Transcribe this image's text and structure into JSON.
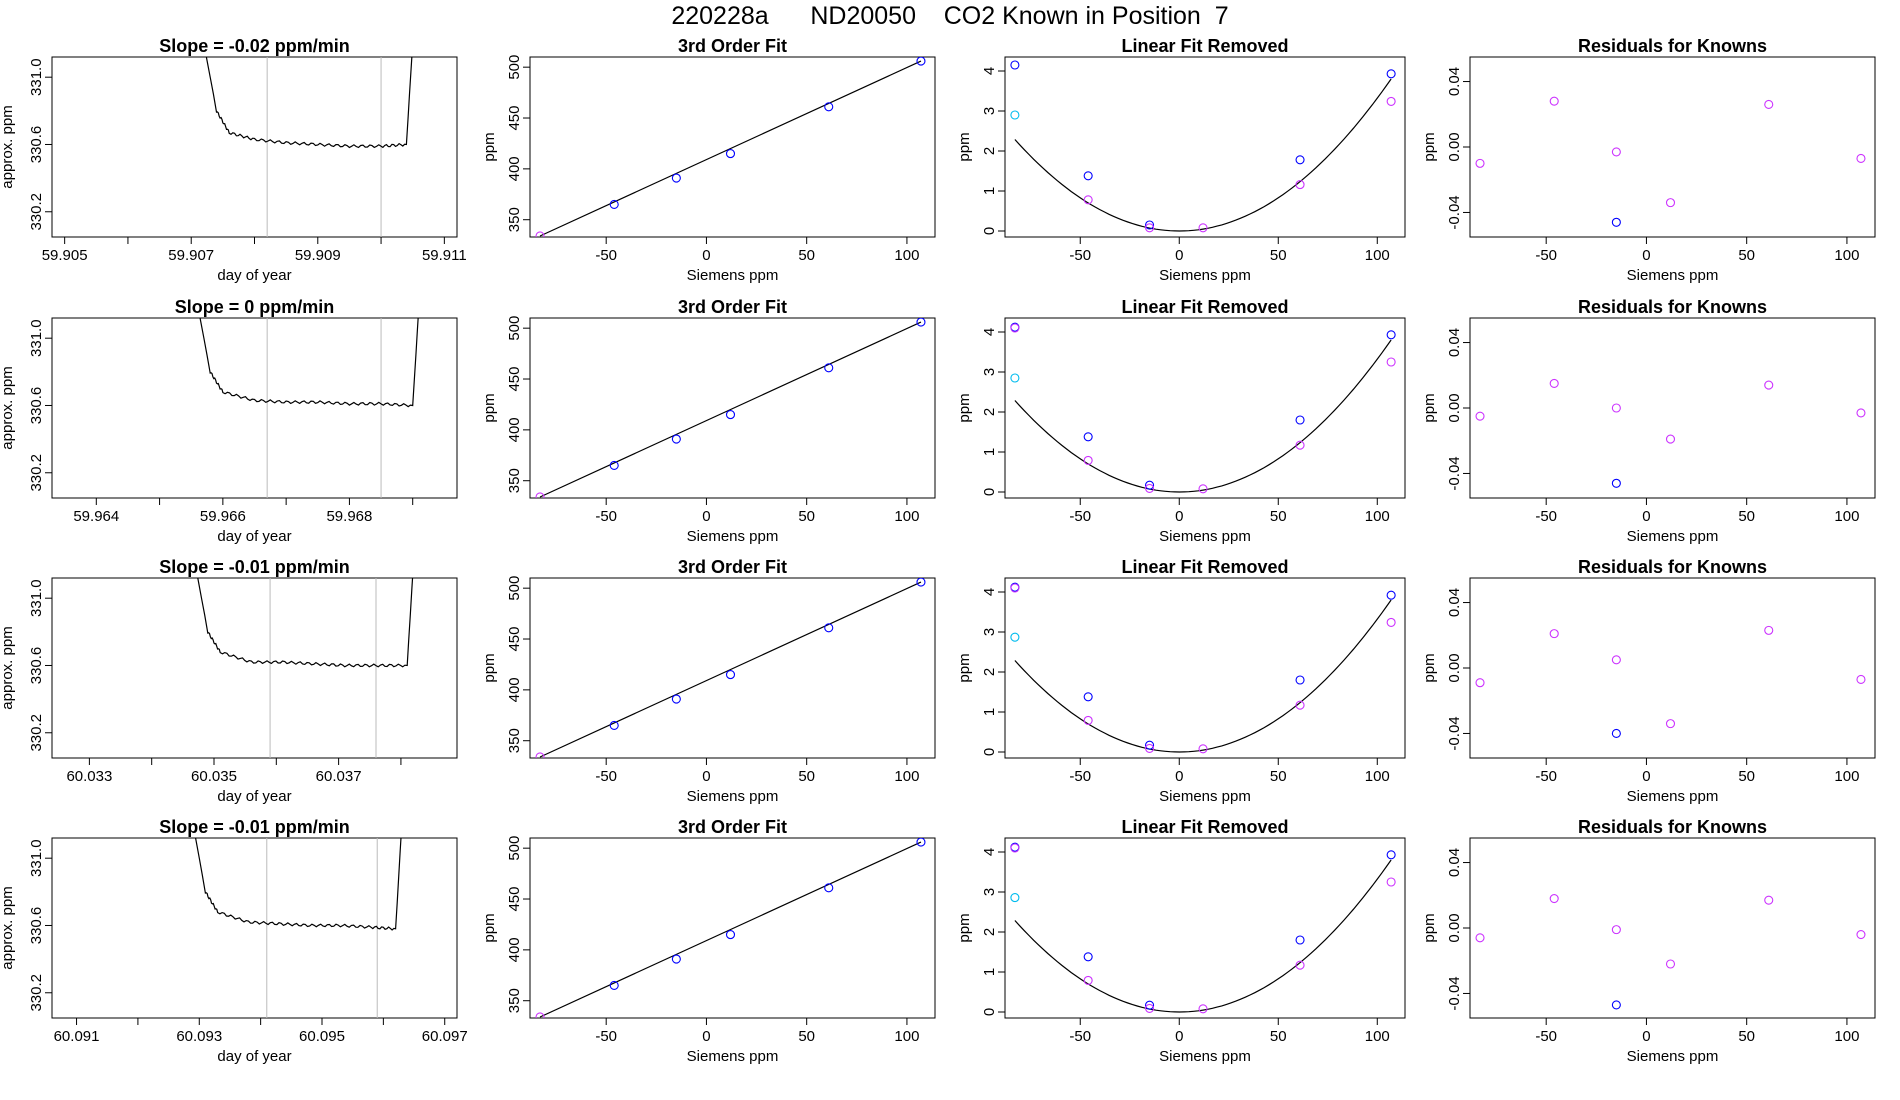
{
  "page": {
    "title": "220228a      ND20050    CO2 Known in Position  7"
  },
  "colors": {
    "line": "#000000",
    "marker_residual": "#cc33ff",
    "marker_blue": "#0000ff",
    "marker_cyan": "#00bbee",
    "window_line": "#bbbbbb"
  },
  "chart_data": [
    {
      "type": "line",
      "row": 0,
      "col": 0,
      "title": "Slope =  -0.02  ppm/min",
      "xlabel": "day of year",
      "ylabel": "approx. ppm",
      "xlim": [
        59.9048,
        59.9112
      ],
      "ylim": [
        330.05,
        331.12
      ],
      "xticks": [
        "59.905",
        "59.906",
        "59.907",
        "59.908",
        "59.909",
        "59.910",
        "59.911"
      ],
      "xtick_labels": [
        "59.905",
        "",
        "59.907",
        "",
        "59.909",
        "",
        "59.911"
      ],
      "yticks": [
        "330.2",
        "330.6",
        "331.0"
      ],
      "window": [
        59.9082,
        59.91
      ],
      "series": [
        {
          "x": [
            59.9072,
            59.9074,
            59.9076,
            59.908,
            59.9085,
            59.909,
            59.9095,
            59.91,
            59.9104,
            59.9105
          ],
          "y": [
            331.2,
            330.8,
            330.67,
            330.63,
            330.61,
            330.6,
            330.59,
            330.59,
            330.6,
            331.2
          ]
        }
      ]
    },
    {
      "type": "scatter",
      "row": 0,
      "col": 1,
      "title": "3rd Order Fit",
      "xlabel": "Siemens ppm",
      "ylabel": "ppm",
      "xlim": [
        -88,
        114
      ],
      "ylim": [
        333,
        510
      ],
      "xticks": [
        "-50",
        "0",
        "50",
        "100"
      ],
      "yticks": [
        "350",
        "400",
        "450",
        "500"
      ],
      "line": {
        "x": [
          -83,
          107
        ],
        "y": [
          334,
          506
        ]
      },
      "series": [
        {
          "x": [
            -83
          ],
          "y": [
            334
          ],
          "color": "purple"
        },
        {
          "x": [
            -46,
            -15,
            12,
            61,
            107
          ],
          "y": [
            365,
            391,
            415,
            461,
            506
          ],
          "color": "blue"
        }
      ]
    },
    {
      "type": "scatter",
      "row": 0,
      "col": 2,
      "title": "Linear Fit Removed",
      "xlabel": "Siemens ppm",
      "ylabel": "ppm",
      "xlim": [
        -88,
        114
      ],
      "ylim": [
        -0.15,
        4.35
      ],
      "xticks": [
        "-50",
        "0",
        "50",
        "100"
      ],
      "yticks": [
        "0",
        "1",
        "2",
        "3",
        "4"
      ],
      "curve": {
        "coef": 0.000332,
        "x_range": [
          -83,
          107
        ]
      },
      "series": [
        {
          "x": [
            -83,
            -46,
            -15,
            61,
            107
          ],
          "y": [
            4.15,
            1.38,
            0.15,
            1.78,
            3.93
          ],
          "color": "blue"
        },
        {
          "x": [
            -46,
            -15,
            12,
            61,
            107
          ],
          "y": [
            0.78,
            0.08,
            0.08,
            1.16,
            3.24
          ],
          "color": "purple"
        },
        {
          "x": [
            -83
          ],
          "y": [
            2.9
          ],
          "color": "cyan"
        }
      ]
    },
    {
      "type": "scatter",
      "row": 0,
      "col": 3,
      "title": "Residuals for Knowns",
      "xlabel": "Siemens ppm",
      "ylabel": "ppm",
      "xlim": [
        -88,
        114
      ],
      "ylim": [
        -0.055,
        0.055
      ],
      "xticks": [
        "-50",
        "0",
        "50",
        "100"
      ],
      "yticks": [
        "-0.04",
        "0.00",
        "0.04"
      ],
      "series": [
        {
          "x": [
            -83,
            -46,
            -15,
            12,
            61,
            107
          ],
          "y": [
            -0.01,
            0.028,
            -0.003,
            -0.034,
            0.026,
            -0.007
          ],
          "color": "purple"
        },
        {
          "x": [
            -15
          ],
          "y": [
            -0.046
          ],
          "color": "blue"
        }
      ]
    },
    {
      "type": "line",
      "row": 1,
      "col": 0,
      "title": "Slope =  0  ppm/min",
      "xlabel": "day of year",
      "ylabel": "approx. ppm",
      "xlim": [
        59.9633,
        59.9697
      ],
      "ylim": [
        330.05,
        331.12
      ],
      "xticks": [
        "59.964",
        "59.965",
        "59.966",
        "59.967",
        "59.968",
        "59.969"
      ],
      "xtick_labels": [
        "59.964",
        "",
        "59.966",
        "",
        "59.968",
        ""
      ],
      "yticks": [
        "330.2",
        "330.6",
        "331.0"
      ],
      "window": [
        59.9667,
        59.9685
      ],
      "series": [
        {
          "x": [
            59.9656,
            59.9658,
            59.966,
            59.9665,
            59.967,
            59.9675,
            59.968,
            59.9685,
            59.969,
            59.9691
          ],
          "y": [
            331.2,
            330.8,
            330.68,
            330.63,
            330.62,
            330.62,
            330.61,
            330.61,
            330.6,
            331.2
          ]
        }
      ]
    },
    {
      "type": "scatter",
      "row": 1,
      "col": 1,
      "title": "3rd Order Fit",
      "xlabel": "Siemens ppm",
      "ylabel": "ppm",
      "xlim": [
        -88,
        114
      ],
      "ylim": [
        333,
        510
      ],
      "xticks": [
        "-50",
        "0",
        "50",
        "100"
      ],
      "yticks": [
        "350",
        "400",
        "450",
        "500"
      ],
      "line": {
        "x": [
          -83,
          107
        ],
        "y": [
          334,
          506
        ]
      },
      "series": [
        {
          "x": [
            -83
          ],
          "y": [
            334
          ],
          "color": "purple"
        },
        {
          "x": [
            -46,
            -15,
            12,
            61,
            107
          ],
          "y": [
            365,
            391,
            415,
            461,
            506
          ],
          "color": "blue"
        }
      ]
    },
    {
      "type": "scatter",
      "row": 1,
      "col": 2,
      "title": "Linear Fit Removed",
      "xlabel": "Siemens ppm",
      "ylabel": "ppm",
      "xlim": [
        -88,
        114
      ],
      "ylim": [
        -0.15,
        4.35
      ],
      "xticks": [
        "-50",
        "0",
        "50",
        "100"
      ],
      "yticks": [
        "0",
        "1",
        "2",
        "3",
        "4"
      ],
      "curve": {
        "coef": 0.000332,
        "x_range": [
          -83,
          107
        ]
      },
      "series": [
        {
          "x": [
            -83,
            -46,
            -15,
            61,
            107
          ],
          "y": [
            4.12,
            1.38,
            0.17,
            1.8,
            3.93
          ],
          "color": "blue"
        },
        {
          "x": [
            -83,
            -46,
            -15,
            12,
            61,
            107
          ],
          "y": [
            4.1,
            0.79,
            0.09,
            0.08,
            1.17,
            3.25
          ],
          "color": "purple"
        },
        {
          "x": [
            -83
          ],
          "y": [
            2.85
          ],
          "color": "cyan"
        }
      ]
    },
    {
      "type": "scatter",
      "row": 1,
      "col": 3,
      "title": "Residuals for Knowns",
      "xlabel": "Siemens ppm",
      "ylabel": "ppm",
      "xlim": [
        -88,
        114
      ],
      "ylim": [
        -0.055,
        0.055
      ],
      "xticks": [
        "-50",
        "0",
        "50",
        "100"
      ],
      "yticks": [
        "-0.04",
        "0.00",
        "0.04"
      ],
      "series": [
        {
          "x": [
            -83,
            -46,
            -15,
            12,
            61,
            107
          ],
          "y": [
            -0.005,
            0.015,
            0.0,
            -0.019,
            0.014,
            -0.003
          ],
          "color": "purple"
        },
        {
          "x": [
            -15
          ],
          "y": [
            -0.046
          ],
          "color": "blue"
        }
      ]
    },
    {
      "type": "line",
      "row": 2,
      "col": 0,
      "title": "Slope =  -0.01  ppm/min",
      "xlabel": "day of year",
      "ylabel": "approx. ppm",
      "xlim": [
        60.0324,
        60.0389
      ],
      "ylim": [
        330.05,
        331.12
      ],
      "xticks": [
        "60.033",
        "60.034",
        "60.035",
        "60.036",
        "60.037",
        "60.038"
      ],
      "xtick_labels": [
        "60.033",
        "",
        "60.035",
        "",
        "60.037",
        ""
      ],
      "yticks": [
        "330.2",
        "330.6",
        "331.0"
      ],
      "window": [
        60.0359,
        60.0376
      ],
      "series": [
        {
          "x": [
            60.0347,
            60.0349,
            60.0351,
            60.0356,
            60.0361,
            60.0366,
            60.0371,
            60.0376,
            60.0381,
            60.0382
          ],
          "y": [
            331.2,
            330.8,
            330.68,
            330.62,
            330.62,
            330.61,
            330.6,
            330.6,
            330.6,
            331.2
          ]
        }
      ]
    },
    {
      "type": "scatter",
      "row": 2,
      "col": 1,
      "title": "3rd Order Fit",
      "xlabel": "Siemens ppm",
      "ylabel": "ppm",
      "xlim": [
        -88,
        114
      ],
      "ylim": [
        333,
        510
      ],
      "xticks": [
        "-50",
        "0",
        "50",
        "100"
      ],
      "yticks": [
        "350",
        "400",
        "450",
        "500"
      ],
      "line": {
        "x": [
          -83,
          107
        ],
        "y": [
          334,
          506
        ]
      },
      "series": [
        {
          "x": [
            -83
          ],
          "y": [
            334
          ],
          "color": "purple"
        },
        {
          "x": [
            -46,
            -15,
            12,
            61,
            107
          ],
          "y": [
            365,
            391,
            415,
            461,
            506
          ],
          "color": "blue"
        }
      ]
    },
    {
      "type": "scatter",
      "row": 2,
      "col": 2,
      "title": "Linear Fit Removed",
      "xlabel": "Siemens ppm",
      "ylabel": "ppm",
      "xlim": [
        -88,
        114
      ],
      "ylim": [
        -0.15,
        4.35
      ],
      "xticks": [
        "-50",
        "0",
        "50",
        "100"
      ],
      "yticks": [
        "0",
        "1",
        "2",
        "3",
        "4"
      ],
      "curve": {
        "coef": 0.000332,
        "x_range": [
          -83,
          107
        ]
      },
      "series": [
        {
          "x": [
            -83,
            -46,
            -15,
            61,
            107
          ],
          "y": [
            4.12,
            1.38,
            0.17,
            1.8,
            3.92
          ],
          "color": "blue"
        },
        {
          "x": [
            -83,
            -46,
            -15,
            12,
            61,
            107
          ],
          "y": [
            4.1,
            0.79,
            0.09,
            0.08,
            1.17,
            3.24
          ],
          "color": "purple"
        },
        {
          "x": [
            -83
          ],
          "y": [
            2.87
          ],
          "color": "cyan"
        }
      ]
    },
    {
      "type": "scatter",
      "row": 2,
      "col": 3,
      "title": "Residuals for Knowns",
      "xlabel": "Siemens ppm",
      "ylabel": "ppm",
      "xlim": [
        -88,
        114
      ],
      "ylim": [
        -0.055,
        0.055
      ],
      "xticks": [
        "-50",
        "0",
        "50",
        "100"
      ],
      "yticks": [
        "-0.04",
        "0.00",
        "0.04"
      ],
      "series": [
        {
          "x": [
            -83,
            -46,
            -15,
            12,
            61,
            107
          ],
          "y": [
            -0.009,
            0.021,
            0.005,
            -0.034,
            0.023,
            -0.007
          ],
          "color": "purple"
        },
        {
          "x": [
            -15
          ],
          "y": [
            -0.04
          ],
          "color": "blue"
        }
      ]
    },
    {
      "type": "line",
      "row": 3,
      "col": 0,
      "title": "Slope =  -0.01  ppm/min",
      "xlabel": "day of year",
      "ylabel": "approx. ppm",
      "xlim": [
        60.0906,
        60.0972
      ],
      "ylim": [
        330.05,
        331.12
      ],
      "xticks": [
        "60.091",
        "60.092",
        "60.093",
        "60.094",
        "60.095",
        "60.096",
        "60.097"
      ],
      "xtick_labels": [
        "60.091",
        "",
        "60.093",
        "",
        "60.095",
        "",
        "60.097"
      ],
      "yticks": [
        "330.2",
        "330.6",
        "331.0"
      ],
      "window": [
        60.0941,
        60.0959
      ],
      "series": [
        {
          "x": [
            60.0929,
            60.0931,
            60.0933,
            60.0938,
            60.0943,
            60.0948,
            60.0953,
            60.0958,
            60.0962,
            60.0963
          ],
          "y": [
            331.2,
            330.8,
            330.68,
            330.62,
            330.61,
            330.6,
            330.6,
            330.59,
            330.58,
            331.2
          ]
        }
      ]
    },
    {
      "type": "scatter",
      "row": 3,
      "col": 1,
      "title": "3rd Order Fit",
      "xlabel": "Siemens ppm",
      "ylabel": "ppm",
      "xlim": [
        -88,
        114
      ],
      "ylim": [
        333,
        510
      ],
      "xticks": [
        "-50",
        "0",
        "50",
        "100"
      ],
      "yticks": [
        "350",
        "400",
        "450",
        "500"
      ],
      "line": {
        "x": [
          -83,
          107
        ],
        "y": [
          334,
          506
        ]
      },
      "series": [
        {
          "x": [
            -83
          ],
          "y": [
            334
          ],
          "color": "purple"
        },
        {
          "x": [
            -46,
            -15,
            12,
            61,
            107
          ],
          "y": [
            365,
            391,
            415,
            461,
            506
          ],
          "color": "blue"
        }
      ]
    },
    {
      "type": "scatter",
      "row": 3,
      "col": 2,
      "title": "Linear Fit Removed",
      "xlabel": "Siemens ppm",
      "ylabel": "ppm",
      "xlim": [
        -88,
        114
      ],
      "ylim": [
        -0.15,
        4.35
      ],
      "xticks": [
        "-50",
        "0",
        "50",
        "100"
      ],
      "yticks": [
        "0",
        "1",
        "2",
        "3",
        "4"
      ],
      "curve": {
        "coef": 0.000332,
        "x_range": [
          -83,
          107
        ]
      },
      "series": [
        {
          "x": [
            -83,
            -46,
            -15,
            61,
            107
          ],
          "y": [
            4.12,
            1.38,
            0.17,
            1.8,
            3.93
          ],
          "color": "blue"
        },
        {
          "x": [
            -83,
            -46,
            -15,
            12,
            61,
            107
          ],
          "y": [
            4.1,
            0.79,
            0.09,
            0.08,
            1.17,
            3.25
          ],
          "color": "purple"
        },
        {
          "x": [
            -83
          ],
          "y": [
            2.86
          ],
          "color": "cyan"
        }
      ]
    },
    {
      "type": "scatter",
      "row": 3,
      "col": 3,
      "title": "Residuals for Knowns",
      "xlabel": "Siemens ppm",
      "ylabel": "ppm",
      "xlim": [
        -88,
        114
      ],
      "ylim": [
        -0.055,
        0.055
      ],
      "xticks": [
        "-50",
        "0",
        "50",
        "100"
      ],
      "yticks": [
        "-0.04",
        "0.00",
        "0.04"
      ],
      "series": [
        {
          "x": [
            -83,
            -46,
            -15,
            12,
            61,
            107
          ],
          "y": [
            -0.006,
            0.018,
            -0.001,
            -0.022,
            0.017,
            -0.004
          ],
          "color": "purple"
        },
        {
          "x": [
            -15
          ],
          "y": [
            -0.047
          ],
          "color": "blue"
        }
      ]
    }
  ]
}
